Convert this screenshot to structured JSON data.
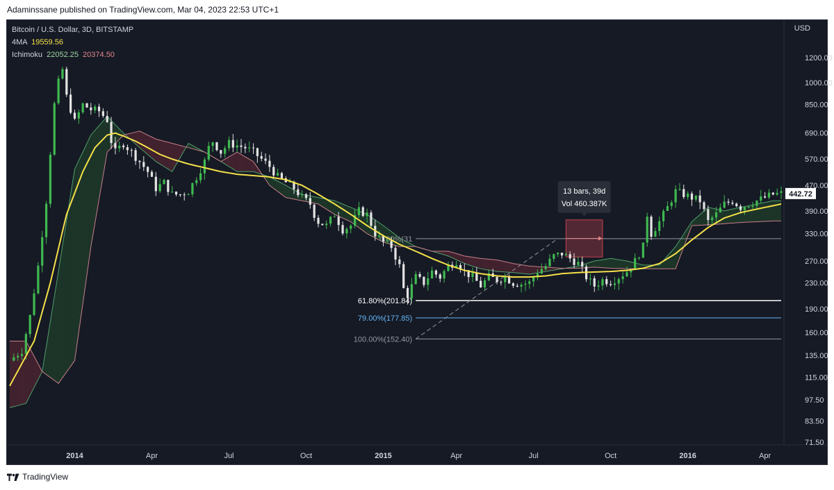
{
  "publisher": "Adaminssane published on TradingView.com, Mar 04, 2023 22:53 UTC+1",
  "footer": {
    "brand": "TradingView"
  },
  "legend": {
    "title": "Bitcoin / U.S. Dollar, 3D, BITSTAMP",
    "ma_label": "4MA",
    "ma_value": "19559.56",
    "ichimoku_label": "Ichimoku",
    "ichimoku_value1": "22052.25",
    "ichimoku_value2": "20374.50"
  },
  "currency": "USD",
  "colors": {
    "background": "#161a25",
    "up": "#3fb950",
    "down": "#e4e4e4",
    "ma": "#f5e149",
    "cloud_bull": "#1f3b2a",
    "cloud_bear": "#4a2530",
    "span_a": "#4f9f6a",
    "span_b": "#c87f88",
    "fib_618": "#ffffff",
    "fib_79": "#64b5f6",
    "fib_0": "#9598a1"
  },
  "chart_data": {
    "type": "candlestick",
    "title": "Bitcoin / U.S. Dollar, 3D, BITSTAMP",
    "yscale": "log",
    "ylim": [
      62,
      1500
    ],
    "y_ticks": [
      "1200.00",
      "1000.00",
      "850.00",
      "690.00",
      "570.00",
      "470.00",
      "390.00",
      "330.00",
      "270.00",
      "230.00",
      "190.00",
      "160.00",
      "135.00",
      "115.00",
      "97.50",
      "83.50",
      "71.50"
    ],
    "x_ticks": [
      "2014",
      "Apr",
      "Jul",
      "Oct",
      "2015",
      "Apr",
      "Jul",
      "Oct",
      "2016",
      "Apr"
    ],
    "last_price": "442.72",
    "price_path": [
      [
        0,
        130
      ],
      [
        3,
        140
      ],
      [
        5,
        180
      ],
      [
        7,
        260
      ],
      [
        9,
        420
      ],
      [
        10,
        600
      ],
      [
        11,
        850
      ],
      [
        12,
        1000
      ],
      [
        13,
        1100
      ],
      [
        14,
        900
      ],
      [
        16,
        750
      ],
      [
        18,
        850
      ],
      [
        20,
        820
      ],
      [
        22,
        810
      ],
      [
        24,
        760
      ],
      [
        25,
        650
      ],
      [
        26,
        600
      ],
      [
        27,
        620
      ],
      [
        28,
        640
      ],
      [
        30,
        600
      ],
      [
        32,
        560
      ],
      [
        34,
        520
      ],
      [
        36,
        460
      ],
      [
        38,
        480
      ],
      [
        40,
        440
      ],
      [
        42,
        440
      ],
      [
        44,
        450
      ],
      [
        46,
        500
      ],
      [
        48,
        560
      ],
      [
        49,
        620
      ],
      [
        50,
        650
      ],
      [
        52,
        600
      ],
      [
        54,
        640
      ],
      [
        56,
        630
      ],
      [
        58,
        620
      ],
      [
        60,
        600
      ],
      [
        62,
        570
      ],
      [
        64,
        540
      ],
      [
        66,
        500
      ],
      [
        68,
        480
      ],
      [
        70,
        460
      ],
      [
        72,
        430
      ],
      [
        74,
        410
      ],
      [
        75,
        380
      ],
      [
        76,
        360
      ],
      [
        78,
        350
      ],
      [
        80,
        380
      ],
      [
        82,
        340
      ],
      [
        84,
        350
      ],
      [
        86,
        390
      ],
      [
        88,
        380
      ],
      [
        90,
        330
      ],
      [
        92,
        310
      ],
      [
        94,
        300
      ],
      [
        96,
        260
      ],
      [
        97,
        220
      ],
      [
        98,
        210
      ],
      [
        100,
        240
      ],
      [
        102,
        230
      ],
      [
        104,
        250
      ],
      [
        106,
        240
      ],
      [
        108,
        260
      ],
      [
        110,
        270
      ],
      [
        112,
        250
      ],
      [
        114,
        240
      ],
      [
        116,
        225
      ],
      [
        118,
        240
      ],
      [
        120,
        235
      ],
      [
        122,
        240
      ],
      [
        124,
        230
      ],
      [
        126,
        228
      ],
      [
        128,
        230
      ],
      [
        130,
        250
      ],
      [
        132,
        260
      ],
      [
        134,
        280
      ],
      [
        136,
        285
      ],
      [
        138,
        275
      ],
      [
        140,
        265
      ],
      [
        142,
        240
      ],
      [
        143,
        232
      ],
      [
        144,
        225
      ],
      [
        146,
        235
      ],
      [
        148,
        232
      ],
      [
        150,
        240
      ],
      [
        152,
        250
      ],
      [
        154,
        270
      ],
      [
        156,
        300
      ],
      [
        157,
        380
      ],
      [
        158,
        330
      ],
      [
        160,
        360
      ],
      [
        162,
        400
      ],
      [
        164,
        450
      ],
      [
        166,
        440
      ],
      [
        168,
        430
      ],
      [
        170,
        420
      ],
      [
        172,
        360
      ],
      [
        174,
        380
      ],
      [
        176,
        410
      ],
      [
        178,
        420
      ],
      [
        180,
        400
      ],
      [
        182,
        410
      ],
      [
        184,
        420
      ],
      [
        186,
        430
      ],
      [
        188,
        440
      ],
      [
        190,
        442.72
      ]
    ],
    "moving_average": {
      "name": "4MA",
      "path": [
        [
          0,
          108
        ],
        [
          6,
          150
        ],
        [
          10,
          230
        ],
        [
          14,
          380
        ],
        [
          18,
          520
        ],
        [
          21,
          620
        ],
        [
          24,
          680
        ],
        [
          26,
          690
        ],
        [
          28,
          675
        ],
        [
          31,
          650
        ],
        [
          34,
          620
        ],
        [
          37,
          590
        ],
        [
          40,
          570
        ],
        [
          44,
          550
        ],
        [
          48,
          535
        ],
        [
          52,
          520
        ],
        [
          56,
          510
        ],
        [
          60,
          505
        ],
        [
          64,
          500
        ],
        [
          68,
          490
        ],
        [
          72,
          470
        ],
        [
          76,
          440
        ],
        [
          80,
          410
        ],
        [
          84,
          380
        ],
        [
          88,
          350
        ],
        [
          92,
          325
        ],
        [
          96,
          305
        ],
        [
          100,
          290
        ],
        [
          104,
          275
        ],
        [
          108,
          262
        ],
        [
          112,
          252
        ],
        [
          116,
          246
        ],
        [
          120,
          242
        ],
        [
          124,
          240
        ],
        [
          128,
          240
        ],
        [
          132,
          242
        ],
        [
          136,
          246
        ],
        [
          140,
          248
        ],
        [
          144,
          249
        ],
        [
          148,
          250
        ],
        [
          152,
          252
        ],
        [
          156,
          256
        ],
        [
          160,
          265
        ],
        [
          164,
          285
        ],
        [
          168,
          315
        ],
        [
          172,
          345
        ],
        [
          176,
          370
        ],
        [
          180,
          385
        ],
        [
          184,
          395
        ],
        [
          188,
          405
        ],
        [
          190,
          410
        ]
      ]
    },
    "ichimoku": {
      "span_a": [
        [
          0,
          92
        ],
        [
          4,
          95
        ],
        [
          8,
          120
        ],
        [
          12,
          250
        ],
        [
          16,
          530
        ],
        [
          20,
          680
        ],
        [
          24,
          780
        ],
        [
          28,
          690
        ],
        [
          32,
          620
        ],
        [
          36,
          560
        ],
        [
          40,
          520
        ],
        [
          44,
          640
        ],
        [
          48,
          600
        ],
        [
          52,
          560
        ],
        [
          56,
          520
        ],
        [
          60,
          520
        ],
        [
          64,
          500
        ],
        [
          68,
          470
        ],
        [
          72,
          440
        ],
        [
          76,
          430
        ],
        [
          80,
          420
        ],
        [
          84,
          400
        ],
        [
          88,
          380
        ],
        [
          92,
          350
        ],
        [
          96,
          320
        ],
        [
          100,
          300
        ],
        [
          104,
          290
        ],
        [
          108,
          280
        ],
        [
          112,
          265
        ],
        [
          116,
          255
        ],
        [
          120,
          250
        ],
        [
          124,
          248
        ],
        [
          128,
          245
        ],
        [
          132,
          250
        ],
        [
          136,
          255
        ],
        [
          140,
          260
        ],
        [
          144,
          270
        ],
        [
          148,
          275
        ],
        [
          152,
          270
        ],
        [
          156,
          262
        ],
        [
          160,
          262
        ],
        [
          164,
          300
        ],
        [
          168,
          360
        ],
        [
          172,
          400
        ],
        [
          176,
          390
        ],
        [
          180,
          400
        ],
        [
          184,
          410
        ],
        [
          188,
          420
        ],
        [
          190,
          420
        ]
      ],
      "span_b": [
        [
          0,
          150
        ],
        [
          4,
          150
        ],
        [
          8,
          120
        ],
        [
          12,
          110
        ],
        [
          16,
          130
        ],
        [
          20,
          300
        ],
        [
          24,
          600
        ],
        [
          28,
          680
        ],
        [
          32,
          700
        ],
        [
          36,
          660
        ],
        [
          40,
          640
        ],
        [
          44,
          620
        ],
        [
          48,
          600
        ],
        [
          52,
          560
        ],
        [
          56,
          600
        ],
        [
          60,
          560
        ],
        [
          64,
          470
        ],
        [
          68,
          430
        ],
        [
          72,
          420
        ],
        [
          76,
          410
        ],
        [
          80,
          380
        ],
        [
          84,
          360
        ],
        [
          88,
          330
        ],
        [
          92,
          310
        ],
        [
          96,
          300
        ],
        [
          100,
          300
        ],
        [
          104,
          290
        ],
        [
          108,
          290
        ],
        [
          112,
          280
        ],
        [
          116,
          275
        ],
        [
          120,
          272
        ],
        [
          124,
          265
        ],
        [
          128,
          260
        ],
        [
          132,
          258
        ],
        [
          136,
          256
        ],
        [
          140,
          256
        ],
        [
          144,
          258
        ],
        [
          148,
          256
        ],
        [
          152,
          255
        ],
        [
          156,
          255
        ],
        [
          160,
          255
        ],
        [
          164,
          255
        ],
        [
          168,
          350
        ],
        [
          172,
          352
        ],
        [
          176,
          355
        ],
        [
          180,
          358
        ],
        [
          184,
          360
        ],
        [
          188,
          362
        ],
        [
          190,
          362
        ]
      ]
    },
    "fibonacci": {
      "levels": [
        {
          "label": "0.00%(31",
          "value": 318,
          "color": "#9598a1"
        },
        {
          "label": "61.80%(201.84)",
          "value": 201.84,
          "color": "#ffffff"
        },
        {
          "label": "79.00%(177.85)",
          "value": 177.85,
          "color": "#64b5f6"
        },
        {
          "label": "100.00%(152.40)",
          "value": 152.4,
          "color": "#9598a1"
        }
      ],
      "x_start": 100,
      "x_end": 190,
      "trend_from": [
        100,
        152.4
      ],
      "trend_to": [
        135,
        318
      ]
    },
    "measure": {
      "bars_label": "13 bars, 39d",
      "volume_label": "Vol 460.387K",
      "x_start": 137,
      "x_end": 146,
      "price_low": 278,
      "price_high": 365
    }
  }
}
